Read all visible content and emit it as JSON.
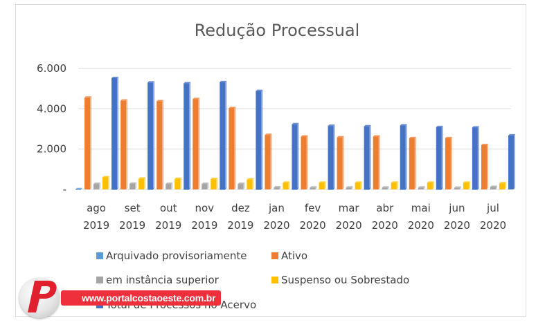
{
  "chart_data": {
    "type": "bar",
    "title": "Redução Processual",
    "categories": [
      [
        "ago",
        "2019"
      ],
      [
        "set",
        "2019"
      ],
      [
        "out",
        "2019"
      ],
      [
        "nov",
        "2019"
      ],
      [
        "dez",
        "2019"
      ],
      [
        "jan",
        "2020"
      ],
      [
        "fev",
        "2020"
      ],
      [
        "mar",
        "2020"
      ],
      [
        "abr",
        "2020"
      ],
      [
        "mai",
        "2020"
      ],
      [
        "jun",
        "2020"
      ],
      [
        "jul",
        "2020"
      ]
    ],
    "ylim": [
      0,
      6000
    ],
    "yticks": [
      "-",
      "2.000",
      "4.000",
      "6.000"
    ],
    "ytick_values": [
      0,
      2000,
      4000,
      6000
    ],
    "grid": true,
    "legend_position": "bottom",
    "series": [
      {
        "name": "Arquivado provisoriamente",
        "color": "#5b9bd5",
        "values": [
          10,
          10,
          10,
          10,
          10,
          10,
          10,
          10,
          10,
          10,
          10,
          10
        ]
      },
      {
        "name": "Ativo",
        "color": "#ed7d31",
        "values": [
          4550,
          4400,
          4370,
          4480,
          4030,
          2700,
          2620,
          2580,
          2620,
          2540,
          2540,
          2200
        ]
      },
      {
        "name": "em instância superior",
        "color": "#a5a5a5",
        "values": [
          270,
          280,
          270,
          270,
          270,
          100,
          90,
          90,
          90,
          90,
          80,
          120
        ]
      },
      {
        "name": "Suspenso ou Sobrestado",
        "color": "#ffc000",
        "values": [
          600,
          530,
          520,
          510,
          490,
          330,
          330,
          330,
          330,
          330,
          330,
          300
        ]
      },
      {
        "name": "Total de Processos no Acervo",
        "color": "#4472c4",
        "values": [
          5520,
          5300,
          5260,
          5320,
          4880,
          3230,
          3150,
          3130,
          3170,
          3090,
          3070,
          2680
        ]
      }
    ]
  },
  "watermark": {
    "url": "www.portalcostaoeste.com.br",
    "logo_letter": "P"
  }
}
